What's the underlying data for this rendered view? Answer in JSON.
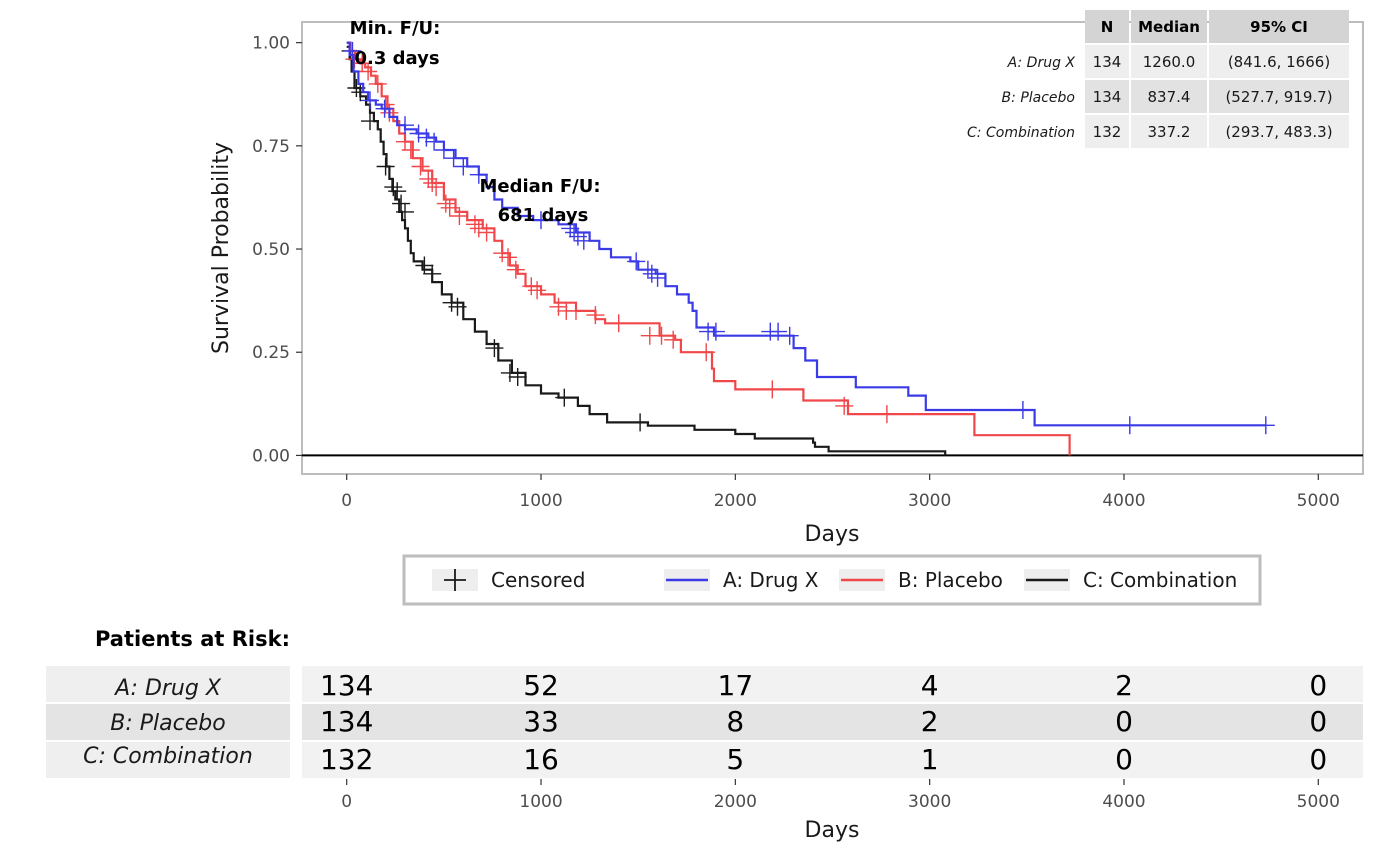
{
  "chart_data": {
    "type": "line",
    "subtype": "kaplan-meier",
    "xlabel": "Days",
    "ylabel": "Survival Probability",
    "xlim": [
      -230,
      5230
    ],
    "ylim": [
      -0.045,
      1.05
    ],
    "x_ticks": [
      "0",
      "1000",
      "2000",
      "3000",
      "4000",
      "5000"
    ],
    "y_ticks": [
      "0.00",
      "0.25",
      "0.50",
      "0.75",
      "1.00"
    ],
    "legend_position": "bottom",
    "legend": {
      "censored_label": "Censored",
      "entries": [
        "A: Drug X",
        "B: Placebo",
        "C: Combination"
      ]
    },
    "annotations": {
      "min_fu": [
        "Min. F/U:",
        "0.3 days"
      ],
      "median_fu": [
        "Median F/U:",
        "681 days"
      ]
    },
    "series": [
      {
        "name": "A: Drug X",
        "color": "#3a3ae6",
        "steps": [
          [
            0,
            1.0
          ],
          [
            15,
            0.97
          ],
          [
            35,
            0.93
          ],
          [
            60,
            0.9
          ],
          [
            85,
            0.88
          ],
          [
            110,
            0.86
          ],
          [
            150,
            0.85
          ],
          [
            180,
            0.84
          ],
          [
            220,
            0.82
          ],
          [
            260,
            0.8
          ],
          [
            300,
            0.79
          ],
          [
            360,
            0.78
          ],
          [
            420,
            0.77
          ],
          [
            460,
            0.76
          ],
          [
            500,
            0.74
          ],
          [
            560,
            0.72
          ],
          [
            620,
            0.7
          ],
          [
            680,
            0.68
          ],
          [
            720,
            0.65
          ],
          [
            760,
            0.62
          ],
          [
            800,
            0.6
          ],
          [
            880,
            0.58
          ],
          [
            960,
            0.57
          ],
          [
            1090,
            0.56
          ],
          [
            1180,
            0.54
          ],
          [
            1250,
            0.52
          ],
          [
            1300,
            0.5
          ],
          [
            1360,
            0.48
          ],
          [
            1460,
            0.47
          ],
          [
            1500,
            0.45
          ],
          [
            1590,
            0.44
          ],
          [
            1640,
            0.41
          ],
          [
            1700,
            0.39
          ],
          [
            1760,
            0.37
          ],
          [
            1780,
            0.35
          ],
          [
            1800,
            0.31
          ],
          [
            1890,
            0.29
          ],
          [
            2200,
            0.29
          ],
          [
            2300,
            0.26
          ],
          [
            2360,
            0.23
          ],
          [
            2420,
            0.19
          ],
          [
            2620,
            0.19
          ],
          [
            2620,
            0.165
          ],
          [
            2890,
            0.165
          ],
          [
            2890,
            0.145
          ],
          [
            2980,
            0.11
          ],
          [
            3540,
            0.11
          ],
          [
            3540,
            0.073
          ],
          [
            4730,
            0.073
          ]
        ],
        "censored": [
          [
            30,
            0.98
          ],
          [
            120,
            0.86
          ],
          [
            195,
            0.84
          ],
          [
            300,
            0.8
          ],
          [
            370,
            0.78
          ],
          [
            410,
            0.77
          ],
          [
            450,
            0.76
          ],
          [
            500,
            0.74
          ],
          [
            550,
            0.72
          ],
          [
            600,
            0.7
          ],
          [
            680,
            0.68
          ],
          [
            1000,
            0.57
          ],
          [
            1150,
            0.55
          ],
          [
            1170,
            0.54
          ],
          [
            1190,
            0.53
          ],
          [
            1220,
            0.52
          ],
          [
            1490,
            0.47
          ],
          [
            1550,
            0.45
          ],
          [
            1570,
            0.44
          ],
          [
            1600,
            0.43
          ],
          [
            1860,
            0.3
          ],
          [
            1900,
            0.3
          ],
          [
            2180,
            0.3
          ],
          [
            2220,
            0.3
          ],
          [
            2280,
            0.29
          ],
          [
            3480,
            0.11
          ],
          [
            4030,
            0.073
          ],
          [
            4730,
            0.073
          ]
        ]
      },
      {
        "name": "B: Placebo",
        "color": "#f0474a",
        "steps": [
          [
            0,
            1.0
          ],
          [
            20,
            0.98
          ],
          [
            45,
            0.96
          ],
          [
            70,
            0.95
          ],
          [
            95,
            0.94
          ],
          [
            125,
            0.92
          ],
          [
            150,
            0.9
          ],
          [
            180,
            0.87
          ],
          [
            210,
            0.84
          ],
          [
            240,
            0.81
          ],
          [
            270,
            0.78
          ],
          [
            300,
            0.76
          ],
          [
            340,
            0.72
          ],
          [
            390,
            0.69
          ],
          [
            440,
            0.66
          ],
          [
            500,
            0.62
          ],
          [
            560,
            0.59
          ],
          [
            620,
            0.57
          ],
          [
            700,
            0.55
          ],
          [
            760,
            0.52
          ],
          [
            800,
            0.49
          ],
          [
            840,
            0.46
          ],
          [
            880,
            0.44
          ],
          [
            920,
            0.41
          ],
          [
            1000,
            0.39
          ],
          [
            1070,
            0.37
          ],
          [
            1180,
            0.35
          ],
          [
            1280,
            0.33
          ],
          [
            1330,
            0.32
          ],
          [
            1610,
            0.29
          ],
          [
            1690,
            0.28
          ],
          [
            1720,
            0.25
          ],
          [
            1850,
            0.25
          ],
          [
            1880,
            0.21
          ],
          [
            1890,
            0.18
          ],
          [
            2000,
            0.18
          ],
          [
            2000,
            0.16
          ],
          [
            2350,
            0.16
          ],
          [
            2350,
            0.133
          ],
          [
            2580,
            0.133
          ],
          [
            2580,
            0.1
          ],
          [
            3230,
            0.1
          ],
          [
            3230,
            0.049
          ],
          [
            3720,
            0.049
          ],
          [
            3720,
            0.0
          ]
        ],
        "censored": [
          [
            40,
            0.96
          ],
          [
            80,
            0.95
          ],
          [
            110,
            0.93
          ],
          [
            160,
            0.9
          ],
          [
            200,
            0.85
          ],
          [
            220,
            0.83
          ],
          [
            300,
            0.76
          ],
          [
            330,
            0.74
          ],
          [
            380,
            0.7
          ],
          [
            420,
            0.67
          ],
          [
            440,
            0.66
          ],
          [
            460,
            0.65
          ],
          [
            510,
            0.61
          ],
          [
            530,
            0.6
          ],
          [
            580,
            0.58
          ],
          [
            660,
            0.56
          ],
          [
            680,
            0.55
          ],
          [
            720,
            0.54
          ],
          [
            800,
            0.49
          ],
          [
            830,
            0.48
          ],
          [
            870,
            0.45
          ],
          [
            950,
            0.41
          ],
          [
            980,
            0.4
          ],
          [
            1090,
            0.36
          ],
          [
            1130,
            0.35
          ],
          [
            1180,
            0.35
          ],
          [
            1280,
            0.34
          ],
          [
            1400,
            0.32
          ],
          [
            1560,
            0.29
          ],
          [
            1620,
            0.29
          ],
          [
            1680,
            0.28
          ],
          [
            1850,
            0.25
          ],
          [
            2190,
            0.16
          ],
          [
            2560,
            0.12
          ],
          [
            2780,
            0.1
          ]
        ]
      },
      {
        "name": "C: Combination",
        "color": "#1a1a1a",
        "steps": [
          [
            0,
            0.99
          ],
          [
            15,
            0.96
          ],
          [
            25,
            0.93
          ],
          [
            40,
            0.89
          ],
          [
            70,
            0.87
          ],
          [
            100,
            0.85
          ],
          [
            120,
            0.83
          ],
          [
            140,
            0.81
          ],
          [
            160,
            0.79
          ],
          [
            175,
            0.76
          ],
          [
            190,
            0.73
          ],
          [
            205,
            0.7
          ],
          [
            220,
            0.67
          ],
          [
            235,
            0.64
          ],
          [
            250,
            0.62
          ],
          [
            270,
            0.59
          ],
          [
            285,
            0.57
          ],
          [
            300,
            0.55
          ],
          [
            315,
            0.52
          ],
          [
            330,
            0.49
          ],
          [
            345,
            0.47
          ],
          [
            390,
            0.45
          ],
          [
            440,
            0.42
          ],
          [
            490,
            0.39
          ],
          [
            540,
            0.37
          ],
          [
            600,
            0.33
          ],
          [
            660,
            0.3
          ],
          [
            720,
            0.27
          ],
          [
            780,
            0.23
          ],
          [
            850,
            0.2
          ],
          [
            920,
            0.17
          ],
          [
            1000,
            0.15
          ],
          [
            1090,
            0.14
          ],
          [
            1190,
            0.12
          ],
          [
            1250,
            0.1
          ],
          [
            1340,
            0.08
          ],
          [
            1550,
            0.072
          ],
          [
            1790,
            0.062
          ],
          [
            2000,
            0.052
          ],
          [
            2100,
            0.041
          ],
          [
            2400,
            0.031
          ],
          [
            2410,
            0.021
          ],
          [
            2480,
            0.01
          ],
          [
            3080,
            0.01
          ],
          [
            3080,
            0.0
          ]
        ],
        "censored": [
          [
            20,
            0.98
          ],
          [
            50,
            0.89
          ],
          [
            70,
            0.88
          ],
          [
            120,
            0.81
          ],
          [
            200,
            0.7
          ],
          [
            240,
            0.65
          ],
          [
            260,
            0.64
          ],
          [
            280,
            0.61
          ],
          [
            300,
            0.59
          ],
          [
            400,
            0.46
          ],
          [
            440,
            0.44
          ],
          [
            540,
            0.37
          ],
          [
            570,
            0.36
          ],
          [
            760,
            0.26
          ],
          [
            840,
            0.2
          ],
          [
            880,
            0.19
          ],
          [
            1120,
            0.14
          ],
          [
            1510,
            0.08
          ]
        ]
      }
    ],
    "summary_table": {
      "headers": [
        "N",
        "Median",
        "95% CI"
      ],
      "rows": [
        {
          "label": "A: Drug X",
          "n": "134",
          "median": "1260.0",
          "ci": "(841.6, 1666)"
        },
        {
          "label": "B: Placebo",
          "n": "134",
          "median": "837.4",
          "ci": "(527.7, 919.7)"
        },
        {
          "label": "C: Combination",
          "n": "132",
          "median": "337.2",
          "ci": "(293.7, 483.3)"
        }
      ]
    },
    "risk_table": {
      "title": "Patients at Risk:",
      "xlabel": "Days",
      "times": [
        "0",
        "1000",
        "2000",
        "3000",
        "4000",
        "5000"
      ],
      "rows": [
        {
          "label": "A: Drug X",
          "values": [
            "134",
            "52",
            "17",
            "4",
            "2",
            "0"
          ]
        },
        {
          "label": "B: Placebo",
          "values": [
            "134",
            "33",
            "8",
            "2",
            "0",
            "0"
          ]
        },
        {
          "label": "C: Combination",
          "values": [
            "132",
            "16",
            "5",
            "1",
            "0",
            "0"
          ]
        }
      ]
    }
  }
}
